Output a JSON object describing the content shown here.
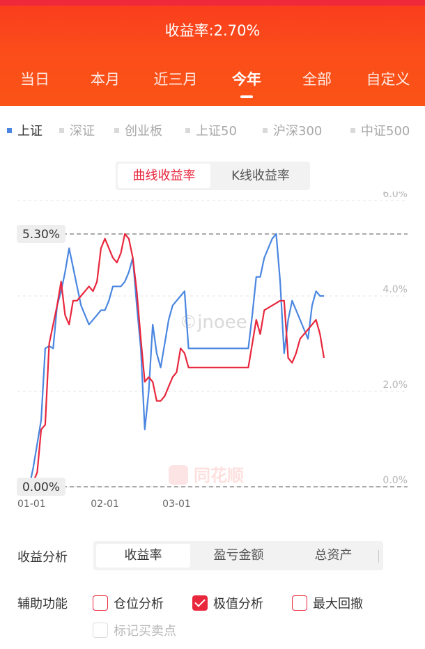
{
  "header": {
    "title": "收益率:2.70%",
    "tabs": [
      {
        "label": "当日",
        "active": false
      },
      {
        "label": "本月",
        "active": false
      },
      {
        "label": "近三月",
        "active": false
      },
      {
        "label": "今年",
        "active": true
      },
      {
        "label": "全部",
        "active": false
      },
      {
        "label": "自定义",
        "active": false
      }
    ]
  },
  "legend": [
    {
      "label": "上证",
      "active": true
    },
    {
      "label": "深证",
      "active": false
    },
    {
      "label": "创业板",
      "active": false
    },
    {
      "label": "上证50",
      "active": false
    },
    {
      "label": "沪深300",
      "active": false
    },
    {
      "label": "中证500",
      "active": false
    }
  ],
  "chart_toggle": {
    "curve_label": "曲线收益率",
    "kline_label": "K线收益率"
  },
  "chart_data": {
    "type": "line",
    "ylim": [
      0,
      6
    ],
    "y_ticks": [
      "6.0%",
      "4.0%",
      "2.0%",
      "0.0%"
    ],
    "x_ticks": [
      {
        "label": "01-01",
        "index": 0
      },
      {
        "label": "02-01",
        "index": 19
      },
      {
        "label": "03-01",
        "index": 37
      }
    ],
    "max_label": "5.30%",
    "max_value": 5.3,
    "min_label": "0.00%",
    "min_value": 0.0,
    "watermark": "©jnoee",
    "brand": "同花顺",
    "colors": {
      "portfolio": "#e8263c",
      "index": "#4a86e0"
    },
    "series": [
      {
        "key": "portfolio",
        "values": [
          0.0,
          0.1,
          0.3,
          1.2,
          1.3,
          3.0,
          3.4,
          3.8,
          4.3,
          3.6,
          3.4,
          3.9,
          3.9,
          4.0,
          4.1,
          4.2,
          4.1,
          4.3,
          5.0,
          5.2,
          5.0,
          4.8,
          4.7,
          4.9,
          5.3,
          5.2,
          4.8,
          4.1,
          3.1,
          2.2,
          2.3,
          2.2,
          1.8,
          1.8,
          1.9,
          2.1,
          2.3,
          2.4,
          2.9,
          2.8,
          2.5,
          2.5,
          2.5,
          2.5,
          2.5,
          2.5,
          2.5,
          2.5,
          2.5,
          2.5,
          2.5,
          2.5,
          2.5,
          2.5,
          2.5,
          2.5,
          3.0,
          3.5,
          3.2,
          3.7,
          3.75,
          3.8,
          3.85,
          3.9,
          3.9,
          2.7,
          2.6,
          2.8,
          3.1,
          3.2,
          3.3,
          3.4,
          3.5,
          3.2,
          2.7
        ]
      },
      {
        "key": "index",
        "values": [
          0.0,
          0.4,
          0.9,
          1.4,
          2.9,
          2.95,
          2.9,
          3.8,
          4.1,
          4.5,
          5.0,
          4.6,
          4.2,
          3.8,
          3.6,
          3.4,
          3.5,
          3.6,
          3.7,
          3.7,
          3.9,
          4.2,
          4.2,
          4.2,
          4.3,
          4.5,
          4.8,
          3.8,
          2.9,
          1.2,
          2.0,
          3.4,
          2.8,
          2.5,
          3.0,
          3.5,
          3.8,
          3.9,
          4.0,
          4.1,
          2.9,
          2.9,
          2.9,
          2.9,
          2.9,
          2.9,
          2.9,
          2.9,
          2.9,
          2.9,
          2.9,
          2.9,
          2.9,
          2.9,
          2.9,
          2.9,
          3.6,
          4.4,
          4.4,
          4.8,
          5.0,
          5.2,
          5.3,
          4.3,
          2.8,
          3.5,
          3.9,
          3.7,
          3.5,
          3.3,
          3.1,
          3.8,
          4.1,
          4.0,
          4.0
        ]
      }
    ]
  },
  "analysis": {
    "label": "收益分析",
    "tabs": [
      {
        "label": "收益率",
        "active": true
      },
      {
        "label": "盈亏金额",
        "active": false
      },
      {
        "label": "总资产",
        "active": false
      }
    ]
  },
  "aux": {
    "label": "辅助功能",
    "options": [
      {
        "label": "仓位分析",
        "checked": false,
        "disabled": false
      },
      {
        "label": "极值分析",
        "checked": true,
        "disabled": false
      },
      {
        "label": "最大回撤",
        "checked": false,
        "disabled": false
      },
      {
        "label": "标记买卖点",
        "checked": false,
        "disabled": true
      }
    ]
  }
}
